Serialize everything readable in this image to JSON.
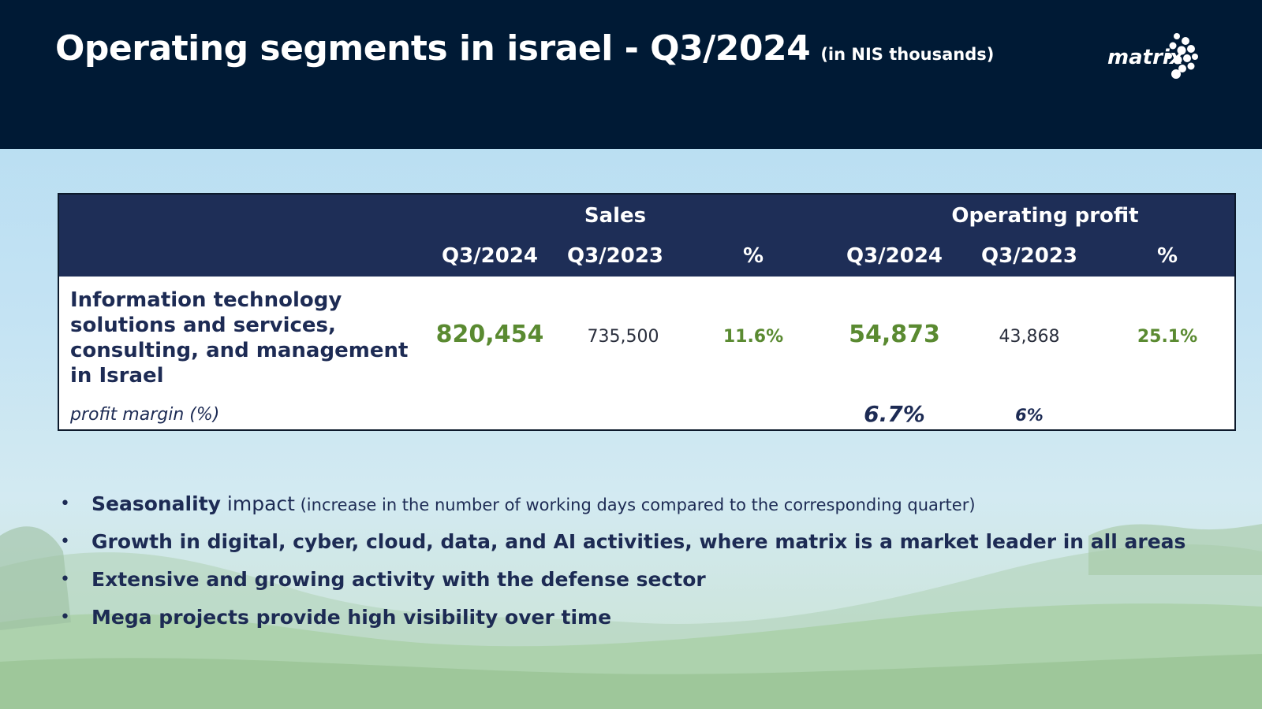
{
  "header": {
    "title": "Operating segments in israel - Q3/2024",
    "subtitle": "(in NIS thousands)",
    "logo_text": "matrix"
  },
  "table": {
    "group_headers": [
      "Sales",
      "Operating profit"
    ],
    "column_headers": [
      "Q3/2024",
      "Q3/2023",
      "%",
      "Q3/2024",
      "Q3/2023",
      "%"
    ],
    "row": {
      "label": "Information technology solutions and services, consulting, and management in Israel",
      "sales_q3_2024": "820,454",
      "sales_q3_2023": "735,500",
      "sales_pct": "11.6%",
      "op_q3_2024": "54,873",
      "op_q3_2023": "43,868",
      "op_pct": "25.1%"
    },
    "margin_row": {
      "label": "profit margin (%)",
      "op_q3_2024": "6.7%",
      "op_q3_2023": "6%"
    }
  },
  "bullets": {
    "b1_bold": "Seasonality",
    "b1_mid": " impact",
    "b1_small": " (increase in the number of working days compared to the corresponding quarter)",
    "b2": "Growth in digital, cyber, cloud, data, and AI activities, where matrix is a market leader in all areas",
    "b3": "Extensive and growing activity with the defense sector",
    "b4": "Mega projects provide high visibility over time",
    "marker": "•"
  },
  "colors": {
    "header_bg": "#001a35",
    "table_header_bg": "#1e2e57",
    "accent_green": "#5a8a31",
    "text_navy": "#1d2b54"
  }
}
